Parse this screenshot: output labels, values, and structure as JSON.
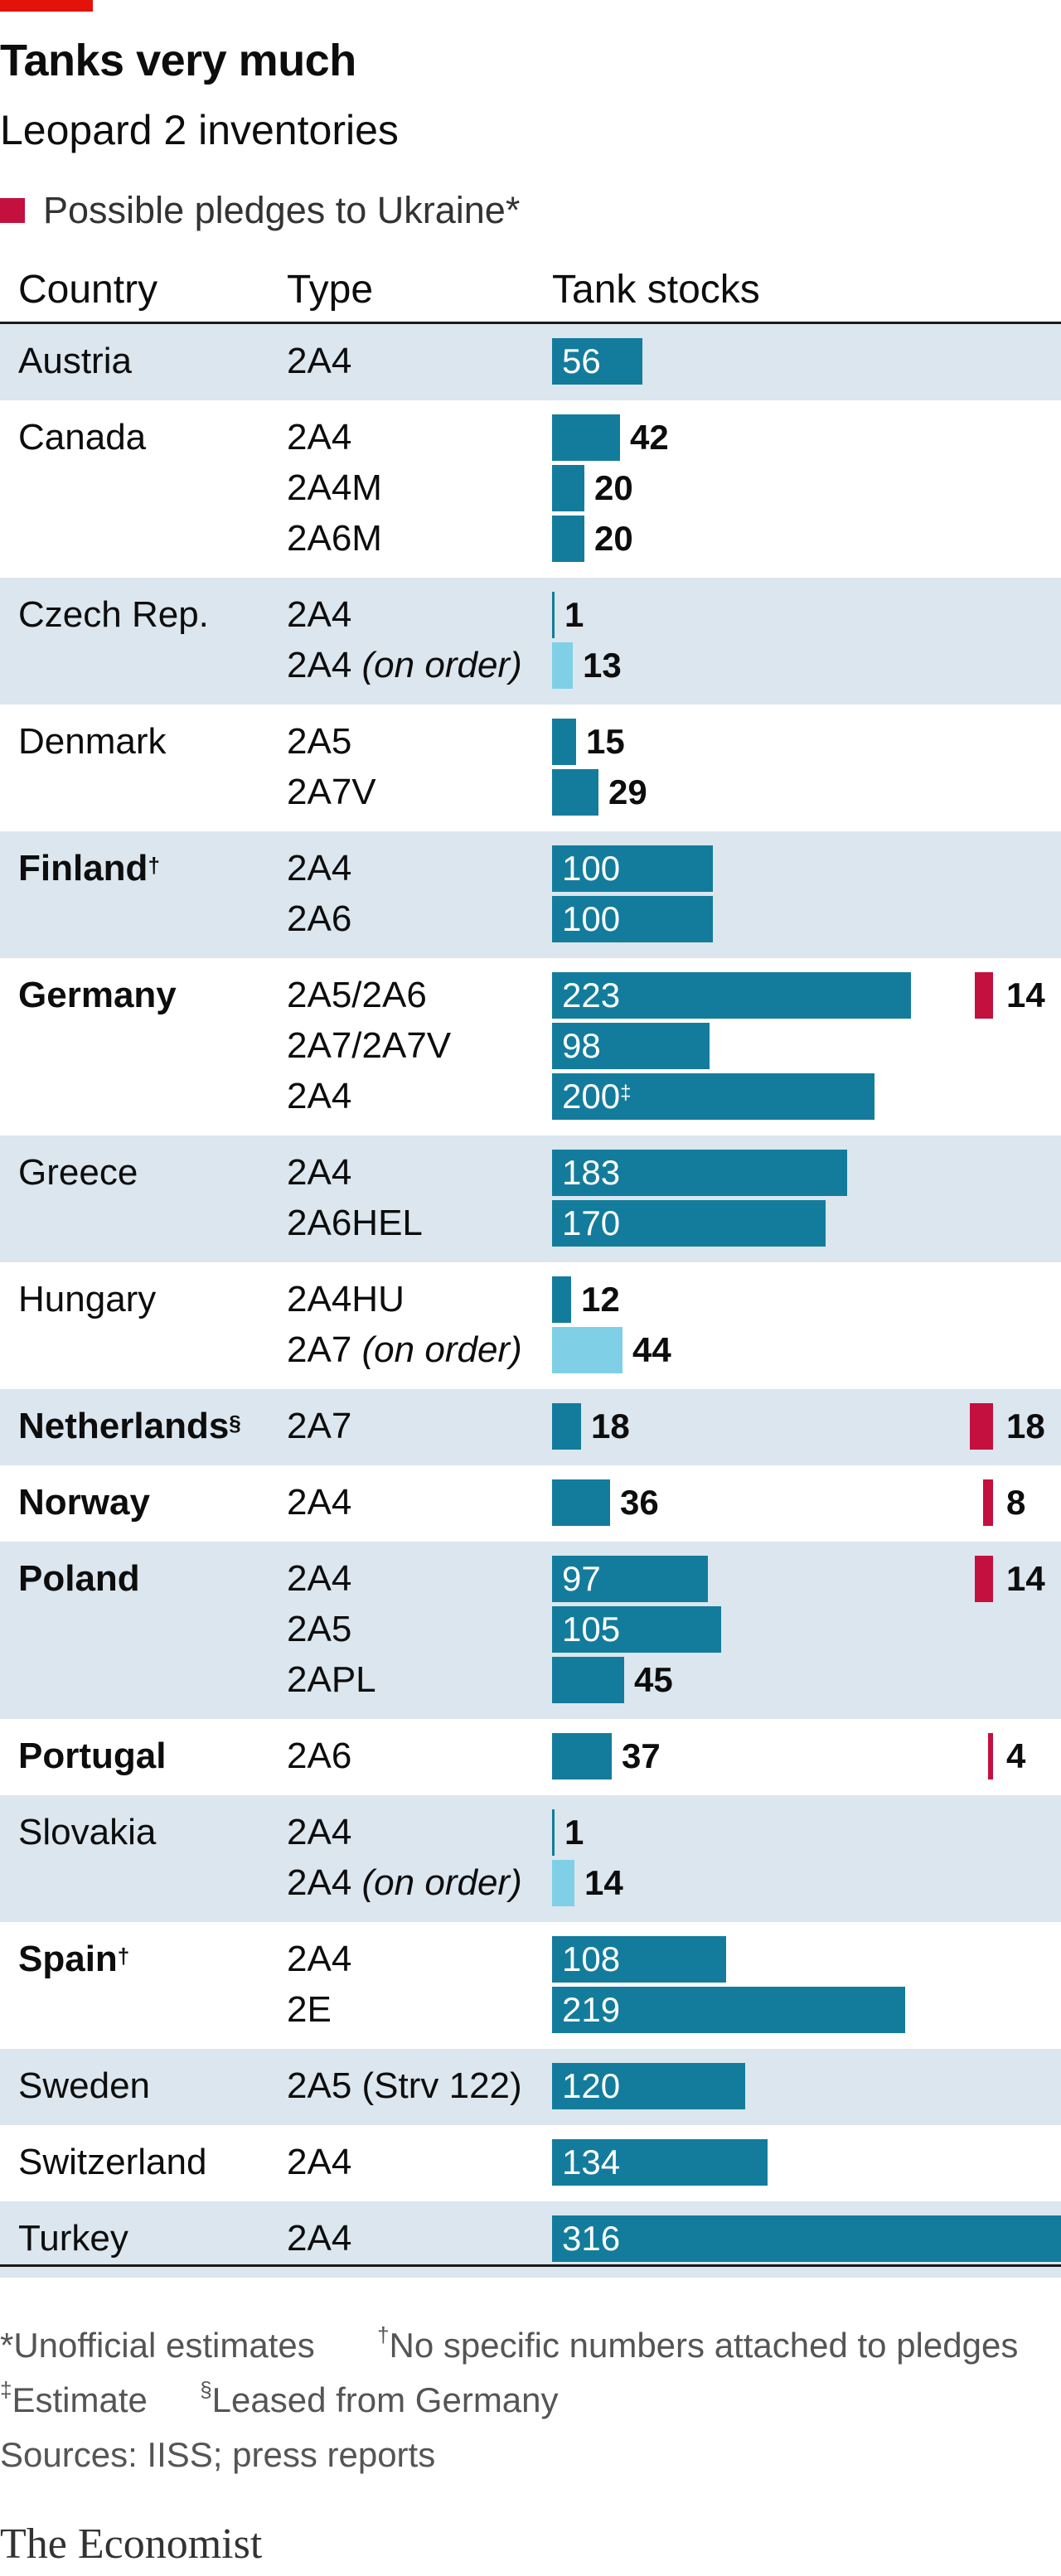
{
  "header": {
    "title": "Tanks very much",
    "subtitle": "Leopard 2 inventories",
    "legend_label": "Possible pledges to Ukraine*",
    "col_country": "Country",
    "col_type": "Type",
    "col_stocks": "Tank stocks"
  },
  "colors": {
    "accent": "#e3120b",
    "stock": "#137c9c",
    "on_order": "#7fd0e6",
    "pledge": "#c3103f",
    "band": "#dbe6ee"
  },
  "chart_data": {
    "type": "bar",
    "title": "Tanks very much",
    "subtitle": "Leopard 2 inventories",
    "xlim": [
      0,
      316
    ],
    "rows": [
      {
        "country": "Austria",
        "mark": "",
        "bold": false,
        "shaded": true,
        "pledge": null,
        "items": [
          {
            "type": "2A4",
            "note": "",
            "value": 56,
            "label": "56",
            "on_order": false
          }
        ]
      },
      {
        "country": "Canada",
        "mark": "",
        "bold": false,
        "shaded": false,
        "pledge": null,
        "items": [
          {
            "type": "2A4",
            "note": "",
            "value": 42,
            "label": "42",
            "on_order": false
          },
          {
            "type": "2A4M",
            "note": "",
            "value": 20,
            "label": "20",
            "on_order": false
          },
          {
            "type": "2A6M",
            "note": "",
            "value": 20,
            "label": "20",
            "on_order": false
          }
        ]
      },
      {
        "country": "Czech Rep.",
        "mark": "",
        "bold": false,
        "shaded": true,
        "pledge": null,
        "items": [
          {
            "type": "2A4",
            "note": "",
            "value": 1,
            "label": "1",
            "on_order": false
          },
          {
            "type": "2A4",
            "note": "(on order)",
            "value": 13,
            "label": "13",
            "on_order": true
          }
        ]
      },
      {
        "country": "Denmark",
        "mark": "",
        "bold": false,
        "shaded": false,
        "pledge": null,
        "items": [
          {
            "type": "2A5",
            "note": "",
            "value": 15,
            "label": "15",
            "on_order": false
          },
          {
            "type": "2A7V",
            "note": "",
            "value": 29,
            "label": "29",
            "on_order": false
          }
        ]
      },
      {
        "country": "Finland",
        "mark": "†",
        "bold": true,
        "shaded": true,
        "pledge": null,
        "items": [
          {
            "type": "2A4",
            "note": "",
            "value": 100,
            "label": "100",
            "on_order": false
          },
          {
            "type": "2A6",
            "note": "",
            "value": 100,
            "label": "100",
            "on_order": false
          }
        ]
      },
      {
        "country": "Germany",
        "mark": "",
        "bold": true,
        "shaded": false,
        "pledge": 14,
        "items": [
          {
            "type": "2A5/2A6",
            "note": "",
            "value": 223,
            "label": "223",
            "on_order": false
          },
          {
            "type": "2A7/2A7V",
            "note": "",
            "value": 98,
            "label": "98",
            "on_order": false
          },
          {
            "type": "2A4",
            "note": "",
            "value": 200,
            "label": "200",
            "mark": "‡",
            "on_order": false
          }
        ]
      },
      {
        "country": "Greece",
        "mark": "",
        "bold": false,
        "shaded": true,
        "pledge": null,
        "items": [
          {
            "type": "2A4",
            "note": "",
            "value": 183,
            "label": "183",
            "on_order": false
          },
          {
            "type": "2A6HEL",
            "note": "",
            "value": 170,
            "label": "170",
            "on_order": false
          }
        ]
      },
      {
        "country": "Hungary",
        "mark": "",
        "bold": false,
        "shaded": false,
        "pledge": null,
        "items": [
          {
            "type": "2A4HU",
            "note": "",
            "value": 12,
            "label": "12",
            "on_order": false
          },
          {
            "type": "2A7",
            "note": "(on order)",
            "value": 44,
            "label": "44",
            "on_order": true
          }
        ]
      },
      {
        "country": "Netherlands",
        "mark": "§",
        "bold": true,
        "shaded": true,
        "pledge": 18,
        "items": [
          {
            "type": "2A7",
            "note": "",
            "value": 18,
            "label": "18",
            "on_order": false
          }
        ]
      },
      {
        "country": "Norway",
        "mark": "",
        "bold": true,
        "shaded": false,
        "pledge": 8,
        "items": [
          {
            "type": "2A4",
            "note": "",
            "value": 36,
            "label": "36",
            "on_order": false
          }
        ]
      },
      {
        "country": "Poland",
        "mark": "",
        "bold": true,
        "shaded": true,
        "pledge": 14,
        "items": [
          {
            "type": "2A4",
            "note": "",
            "value": 97,
            "label": "97",
            "on_order": false
          },
          {
            "type": "2A5",
            "note": "",
            "value": 105,
            "label": "105",
            "on_order": false
          },
          {
            "type": "2APL",
            "note": "",
            "value": 45,
            "label": "45",
            "on_order": false
          }
        ]
      },
      {
        "country": "Portugal",
        "mark": "",
        "bold": true,
        "shaded": false,
        "pledge": 4,
        "items": [
          {
            "type": "2A6",
            "note": "",
            "value": 37,
            "label": "37",
            "on_order": false
          }
        ]
      },
      {
        "country": "Slovakia",
        "mark": "",
        "bold": false,
        "shaded": true,
        "pledge": null,
        "items": [
          {
            "type": "2A4",
            "note": "",
            "value": 1,
            "label": "1",
            "on_order": false
          },
          {
            "type": "2A4",
            "note": "(on order)",
            "value": 14,
            "label": "14",
            "on_order": true
          }
        ]
      },
      {
        "country": "Spain",
        "mark": "†",
        "bold": true,
        "shaded": false,
        "pledge": null,
        "items": [
          {
            "type": "2A4",
            "note": "",
            "value": 108,
            "label": "108",
            "on_order": false
          },
          {
            "type": "2E",
            "note": "",
            "value": 219,
            "label": "219",
            "on_order": false
          }
        ]
      },
      {
        "country": "Sweden",
        "mark": "",
        "bold": false,
        "shaded": true,
        "pledge": null,
        "items": [
          {
            "type": "2A5 (Strv 122)",
            "note": "",
            "value": 120,
            "label": "120",
            "on_order": false
          }
        ]
      },
      {
        "country": "Switzerland",
        "mark": "",
        "bold": false,
        "shaded": false,
        "pledge": null,
        "items": [
          {
            "type": "2A4",
            "note": "",
            "value": 134,
            "label": "134",
            "on_order": false
          }
        ]
      },
      {
        "country": "Turkey",
        "mark": "",
        "bold": false,
        "shaded": true,
        "pledge": null,
        "items": [
          {
            "type": "2A4",
            "note": "",
            "value": 316,
            "label": "316",
            "on_order": false
          }
        ]
      }
    ]
  },
  "footer": {
    "note_unofficial": "*Unofficial estimates",
    "note_dagger_mark": "†",
    "note_dagger": "No specific numbers attached to pledges",
    "note_ddagger_mark": "‡",
    "note_ddagger": "Estimate",
    "note_section_mark": "§",
    "note_section": "Leased from Germany",
    "sources": "Sources: IISS; press reports",
    "brand": "The Economist"
  }
}
